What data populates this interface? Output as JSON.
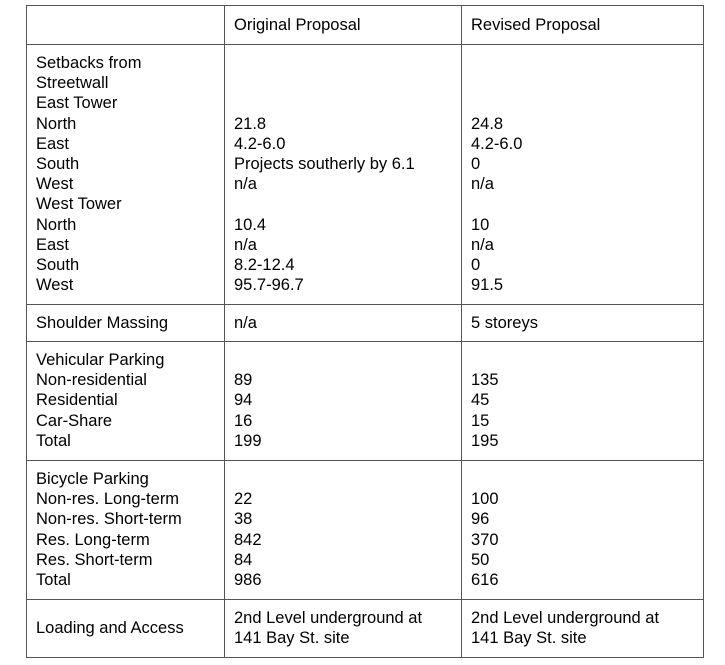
{
  "header": [
    "",
    "Original Proposal",
    "Revised Proposal"
  ],
  "rows": [
    {
      "label": [
        "Setbacks from",
        "Streetwall",
        "East Tower",
        "North",
        "East",
        "South",
        "West",
        "West Tower",
        "North",
        "East",
        "South",
        "West"
      ],
      "original": [
        "",
        "",
        "",
        "21.8",
        "4.2-6.0",
        "Projects southerly by 6.1",
        "n/a",
        "",
        "10.4",
        "n/a",
        "8.2-12.4",
        "95.7-96.7"
      ],
      "revised": [
        "",
        "",
        "",
        "24.8",
        "4.2-6.0",
        "0",
        "n/a",
        "",
        "10",
        "n/a",
        "0",
        "91.5"
      ]
    },
    {
      "label": [
        "Shoulder Massing"
      ],
      "original": [
        "n/a"
      ],
      "revised": [
        "5 storeys"
      ]
    },
    {
      "label": [
        "Vehicular Parking",
        "Non-residential",
        "Residential",
        "Car-Share",
        "Total"
      ],
      "original": [
        "",
        "89",
        "94",
        "16",
        "199"
      ],
      "revised": [
        "",
        "135",
        "45",
        "15",
        "195"
      ]
    },
    {
      "label": [
        "Bicycle Parking",
        "Non-res. Long-term",
        "Non-res. Short-term",
        "Res. Long-term",
        "Res. Short-term",
        "Total"
      ],
      "original": [
        "",
        "22",
        "38",
        "842",
        "84",
        "986"
      ],
      "revised": [
        "",
        "100",
        "96",
        "370",
        "50",
        "616"
      ]
    },
    {
      "label": [
        "Loading and Access"
      ],
      "original": [
        "2nd Level underground at",
        "141 Bay St. site"
      ],
      "revised": [
        "2nd Level underground at",
        "141 Bay St. site"
      ]
    }
  ]
}
